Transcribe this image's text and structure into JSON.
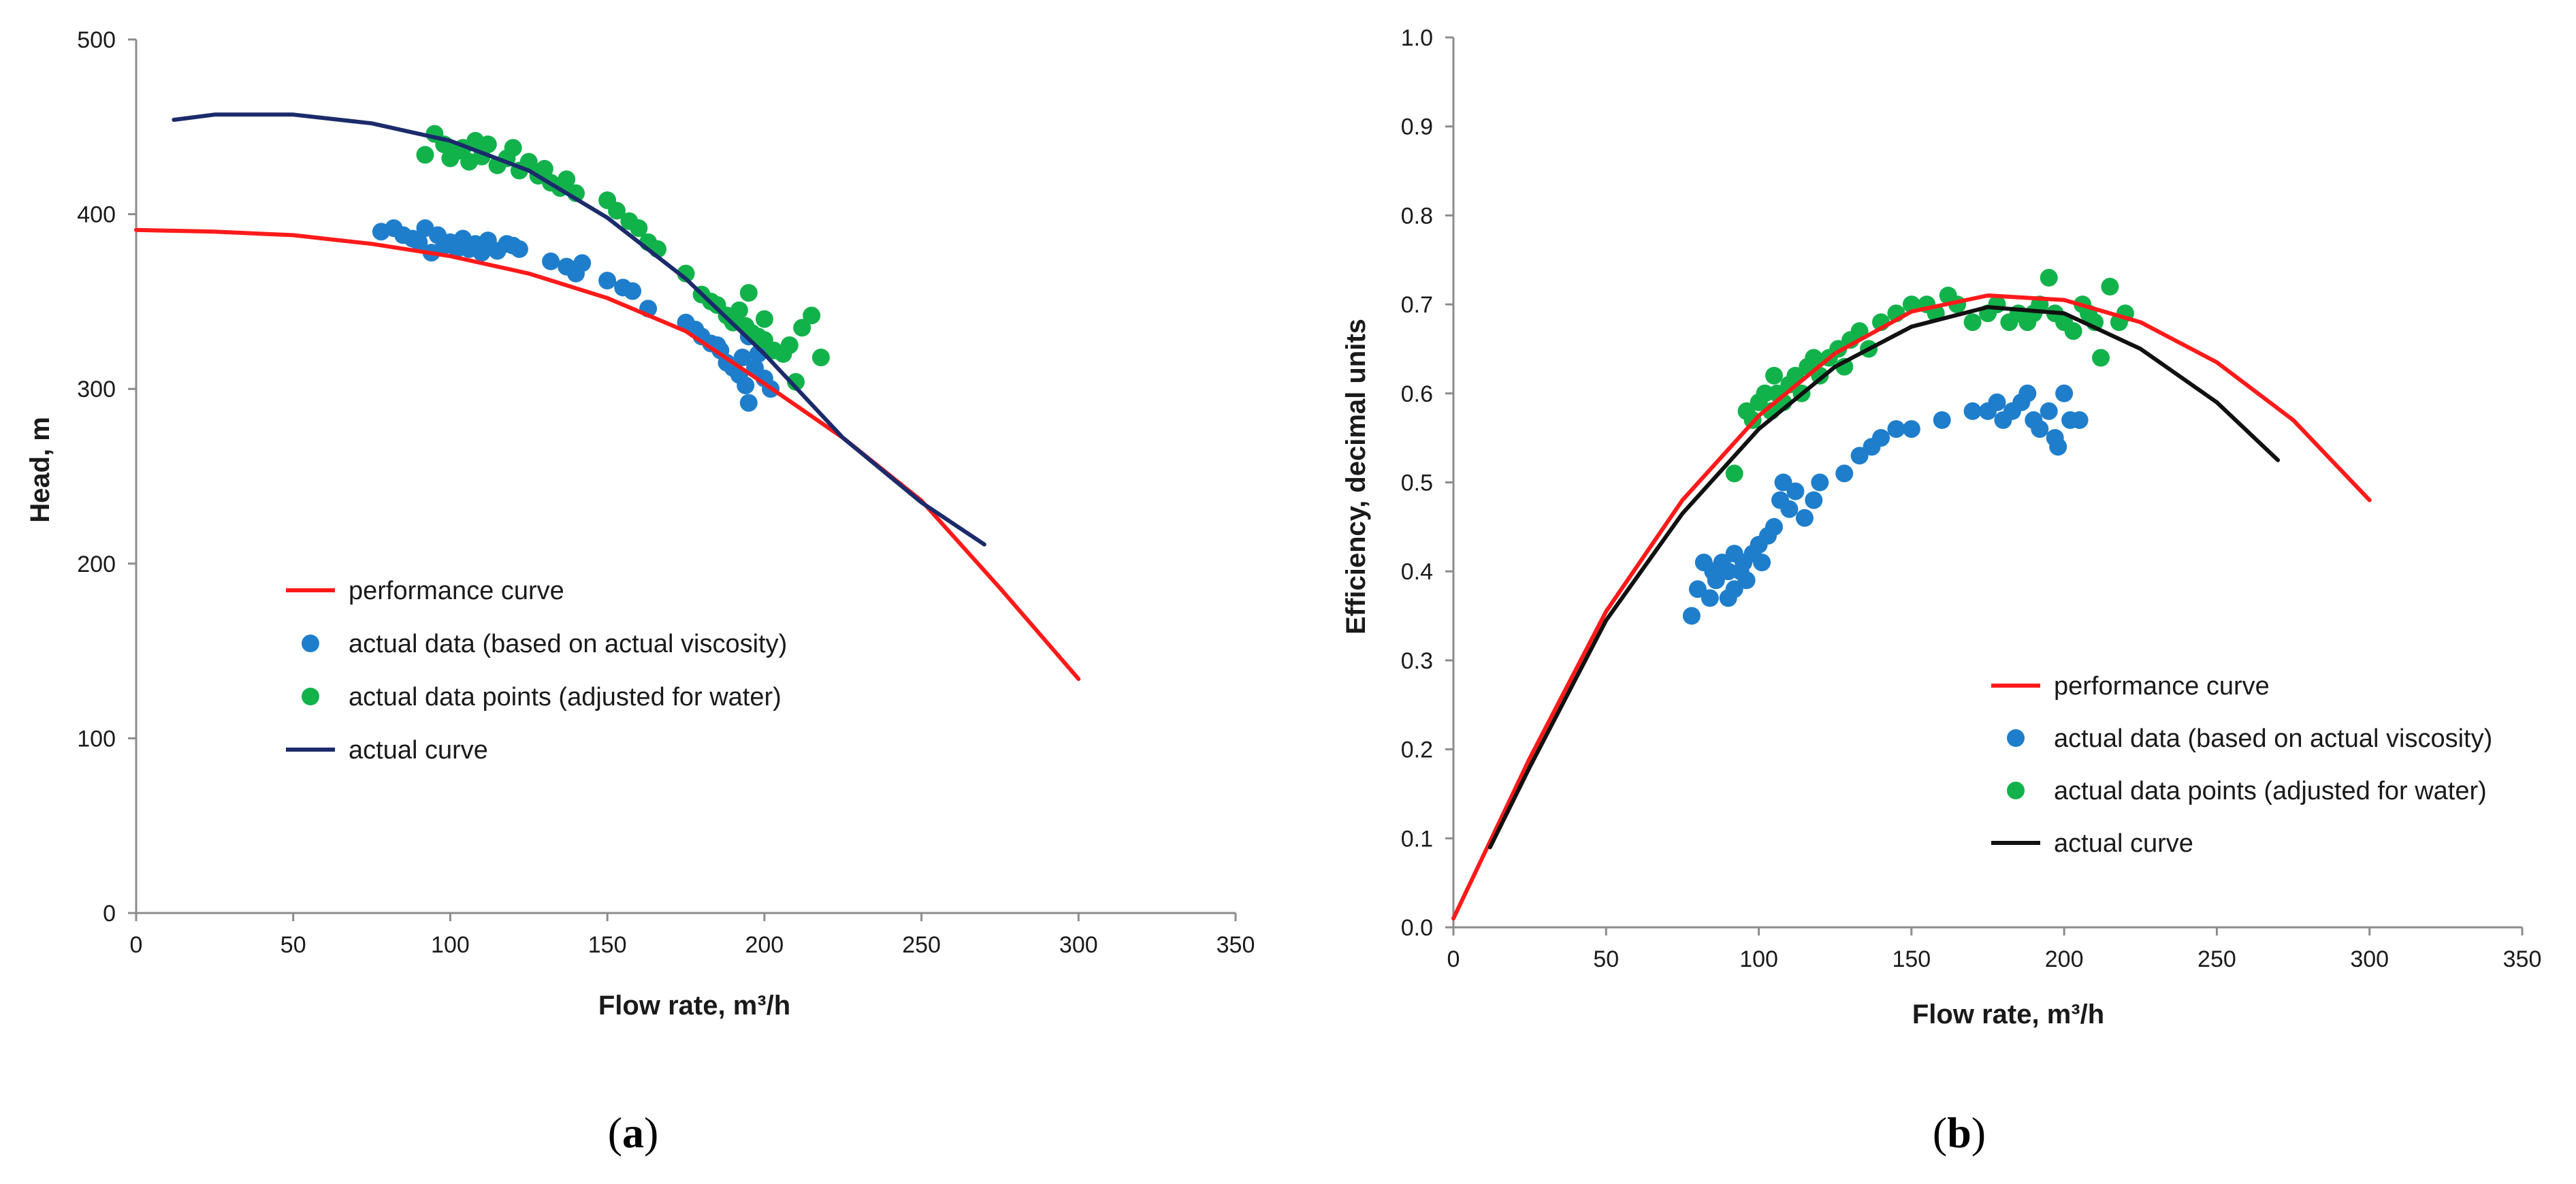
{
  "colors": {
    "performance_curve": "#ff1a1a",
    "actual_viscosity": "#1f7ecb",
    "adjusted_water": "#12b24b",
    "actual_curve_a": "#1b2b6b",
    "actual_curve_b": "#111111"
  },
  "chart_data": [
    {
      "id": "a",
      "panel_label": "a",
      "type": "scatter",
      "xlabel": "Flow rate, m³/h",
      "ylabel": "Head, m",
      "xlim": [
        0,
        350
      ],
      "ylim": [
        0,
        500
      ],
      "xticks": [
        0,
        50,
        100,
        150,
        200,
        250,
        300,
        350
      ],
      "yticks": [
        0,
        100,
        200,
        300,
        400,
        500
      ],
      "legend_position": "lower-left",
      "legend": [
        "performance curve",
        "actual data (based on actual viscosity)",
        "actual data points (adjusted for water)",
        "actual curve"
      ],
      "series": [
        {
          "name": "performance curve",
          "kind": "line",
          "color": "#ff1a1a",
          "x": [
            0,
            25,
            50,
            75,
            100,
            125,
            150,
            175,
            200,
            225,
            250,
            275,
            300
          ],
          "y": [
            391,
            390,
            388,
            383,
            376,
            366,
            352,
            333,
            303,
            272,
            236,
            186,
            134
          ]
        },
        {
          "name": "actual data (based on actual viscosity)",
          "kind": "scatter",
          "color": "#1f7ecb",
          "x": [
            78,
            82,
            85,
            88,
            90,
            92,
            94,
            96,
            98,
            100,
            102,
            104,
            106,
            108,
            110,
            112,
            115,
            118,
            120,
            122,
            132,
            137,
            140,
            142,
            150,
            155,
            158,
            163,
            175,
            178,
            180,
            183,
            186,
            188,
            190,
            192,
            194,
            195,
            197,
            198,
            200,
            202,
            195,
            193,
            185
          ],
          "y": [
            390,
            392,
            388,
            386,
            384,
            392,
            378,
            388,
            382,
            384,
            380,
            386,
            380,
            383,
            378,
            385,
            379,
            383,
            382,
            380,
            373,
            370,
            366,
            372,
            362,
            358,
            356,
            346,
            338,
            334,
            330,
            326,
            322,
            315,
            312,
            308,
            302,
            292,
            312,
            320,
            306,
            300,
            330,
            318,
            325
          ]
        },
        {
          "name": "actual data points (adjusted for water)",
          "kind": "scatter",
          "color": "#12b24b",
          "x": [
            92,
            95,
            98,
            100,
            102,
            104,
            106,
            108,
            110,
            112,
            115,
            118,
            120,
            122,
            125,
            128,
            130,
            132,
            135,
            137,
            140,
            150,
            153,
            157,
            160,
            163,
            166,
            175,
            180,
            183,
            185,
            188,
            190,
            192,
            194,
            196,
            198,
            200,
            203,
            206,
            208,
            210,
            212,
            215,
            218,
            200,
            195
          ],
          "y": [
            434,
            446,
            440,
            432,
            436,
            438,
            430,
            442,
            433,
            440,
            428,
            432,
            438,
            425,
            430,
            422,
            426,
            418,
            415,
            420,
            412,
            408,
            402,
            396,
            392,
            384,
            380,
            366,
            354,
            350,
            348,
            342,
            338,
            345,
            336,
            332,
            330,
            328,
            322,
            320,
            325,
            304,
            335,
            342,
            318,
            340,
            355
          ]
        },
        {
          "name": "actual curve",
          "kind": "line",
          "color": "#1b2b6b",
          "x": [
            12,
            25,
            50,
            75,
            100,
            125,
            150,
            175,
            200,
            225,
            250,
            270
          ],
          "y": [
            454,
            457,
            457,
            452,
            442,
            425,
            398,
            363,
            320,
            272,
            235,
            211
          ]
        }
      ]
    },
    {
      "id": "b",
      "panel_label": "b",
      "type": "scatter",
      "xlabel": "Flow rate, m³/h",
      "ylabel": "Efficiency, decimal units",
      "xlim": [
        0,
        350
      ],
      "ylim": [
        0,
        1.0
      ],
      "xticks": [
        0,
        50,
        100,
        150,
        200,
        250,
        300,
        350
      ],
      "yticks": [
        0.0,
        0.1,
        0.2,
        0.3,
        0.4,
        0.5,
        0.6,
        0.7,
        0.8,
        0.9,
        1.0
      ],
      "legend_position": "lower-right",
      "legend": [
        "performance curve",
        "actual data (based on actual viscosity)",
        "actual data points (adjusted for water)",
        "actual curve"
      ],
      "series": [
        {
          "name": "performance curve",
          "kind": "line",
          "color": "#ff1a1a",
          "x": [
            0,
            25,
            50,
            75,
            100,
            125,
            150,
            175,
            200,
            225,
            250,
            275,
            300
          ],
          "y": [
            0.01,
            0.19,
            0.355,
            0.48,
            0.575,
            0.645,
            0.692,
            0.71,
            0.705,
            0.68,
            0.635,
            0.57,
            0.48
          ]
        },
        {
          "name": "actual data (based on actual viscosity)",
          "kind": "scatter",
          "color": "#1f7ecb",
          "x": [
            78,
            80,
            82,
            84,
            85,
            86,
            88,
            90,
            90,
            92,
            92,
            94,
            95,
            96,
            98,
            100,
            101,
            103,
            105,
            107,
            108,
            110,
            112,
            115,
            118,
            120,
            128,
            133,
            137,
            140,
            145,
            150,
            160,
            170,
            175,
            178,
            180,
            183,
            186,
            188,
            190,
            192,
            195,
            197,
            198,
            200,
            202,
            205
          ],
          "y": [
            0.35,
            0.38,
            0.41,
            0.37,
            0.4,
            0.39,
            0.41,
            0.37,
            0.4,
            0.38,
            0.42,
            0.4,
            0.41,
            0.39,
            0.42,
            0.43,
            0.41,
            0.44,
            0.45,
            0.48,
            0.5,
            0.47,
            0.49,
            0.46,
            0.48,
            0.5,
            0.51,
            0.53,
            0.54,
            0.55,
            0.56,
            0.56,
            0.57,
            0.58,
            0.58,
            0.59,
            0.57,
            0.58,
            0.59,
            0.6,
            0.57,
            0.56,
            0.58,
            0.55,
            0.54,
            0.6,
            0.57,
            0.57
          ]
        },
        {
          "name": "actual data points (adjusted for water)",
          "kind": "scatter",
          "color": "#12b24b",
          "x": [
            92,
            96,
            98,
            100,
            102,
            104,
            105,
            106,
            108,
            110,
            112,
            114,
            116,
            118,
            120,
            123,
            126,
            128,
            130,
            133,
            136,
            140,
            145,
            150,
            155,
            158,
            162,
            165,
            170,
            175,
            178,
            182,
            185,
            188,
            190,
            192,
            195,
            197,
            200,
            203,
            206,
            208,
            210,
            212,
            215,
            218,
            220
          ],
          "y": [
            0.51,
            0.58,
            0.57,
            0.59,
            0.6,
            0.58,
            0.62,
            0.6,
            0.59,
            0.61,
            0.62,
            0.6,
            0.63,
            0.64,
            0.62,
            0.64,
            0.65,
            0.63,
            0.66,
            0.67,
            0.65,
            0.68,
            0.69,
            0.7,
            0.7,
            0.69,
            0.71,
            0.7,
            0.68,
            0.69,
            0.7,
            0.68,
            0.69,
            0.68,
            0.69,
            0.7,
            0.73,
            0.69,
            0.68,
            0.67,
            0.7,
            0.69,
            0.68,
            0.64,
            0.72,
            0.68,
            0.69
          ]
        },
        {
          "name": "actual curve",
          "kind": "line",
          "color": "#111111",
          "x": [
            12,
            25,
            50,
            75,
            100,
            125,
            150,
            175,
            200,
            225,
            250,
            270
          ],
          "y": [
            0.09,
            0.18,
            0.345,
            0.465,
            0.56,
            0.63,
            0.675,
            0.697,
            0.69,
            0.65,
            0.59,
            0.525
          ]
        }
      ]
    }
  ]
}
